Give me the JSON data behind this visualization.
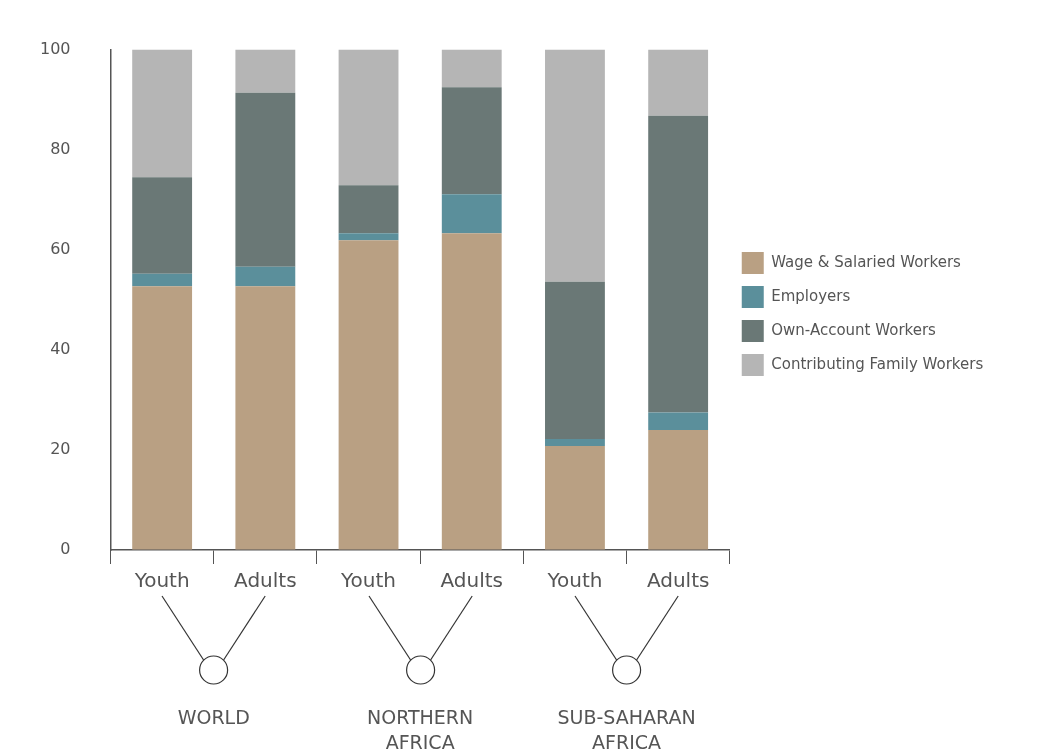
{
  "chart_data": {
    "type": "bar",
    "stacked": true,
    "categories": [
      "Youth",
      "Adults",
      "Youth",
      "Adults",
      "Youth",
      "Adults"
    ],
    "series": [
      {
        "name": "Wage & Salaried Workers",
        "color": "#b9a083",
        "values": [
          52.7,
          52.7,
          61.9,
          63.3,
          20.8,
          24.0
        ]
      },
      {
        "name": "Employers",
        "color": "#5b8f9b",
        "values": [
          2.5,
          3.9,
          1.4,
          7.8,
          1.4,
          3.5
        ]
      },
      {
        "name": "Own-Account Workers",
        "color": "#6a7876",
        "values": [
          19.3,
          34.8,
          9.6,
          21.4,
          31.4,
          59.3
        ]
      },
      {
        "name": "Contributing Family Workers",
        "color": "#b5b5b5",
        "values": [
          25.5,
          8.6,
          27.1,
          7.5,
          46.4,
          13.2
        ]
      }
    ],
    "ylim": [
      0,
      100
    ],
    "yticks": [
      0,
      20,
      40,
      60,
      80,
      100
    ],
    "legend": "right",
    "annotations": [
      "WORLD",
      "NORTHERN AFRICA",
      "SUB-SAHARAN AFRICA"
    ]
  }
}
